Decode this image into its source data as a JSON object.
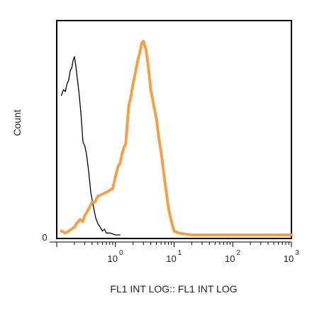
{
  "chart_data": {
    "type": "line",
    "title": "",
    "xlabel": "FL1 INT LOG:: FL1 INT LOG",
    "ylabel": "Count",
    "x_scale": "log",
    "xlim": [
      0.1,
      1000
    ],
    "ylim": [
      0,
      1
    ],
    "grid": false,
    "y_tick_labels": [
      {
        "value": 0,
        "label": "0"
      }
    ],
    "x_tick_labels": [
      {
        "value": 1,
        "base": "10",
        "exp": "0"
      },
      {
        "value": 10,
        "base": "10",
        "exp": "1"
      },
      {
        "value": 100,
        "base": "10",
        "exp": "2"
      },
      {
        "value": 1000,
        "base": "10",
        "exp": "3"
      }
    ],
    "series": [
      {
        "color": "#000000",
        "x": [
          0.12,
          0.13,
          0.14,
          0.15,
          0.16,
          0.17,
          0.18,
          0.19,
          0.2,
          0.21,
          0.22,
          0.24,
          0.26,
          0.28,
          0.3,
          0.32,
          0.35,
          0.38,
          0.42,
          0.46,
          0.5,
          0.55,
          0.6,
          0.65,
          0.7,
          0.8,
          0.9,
          1.0,
          1.2
        ],
        "y": [
          0.72,
          0.75,
          0.74,
          0.78,
          0.8,
          0.85,
          0.86,
          0.9,
          0.92,
          0.88,
          0.83,
          0.73,
          0.62,
          0.48,
          0.46,
          0.42,
          0.33,
          0.22,
          0.15,
          0.09,
          0.06,
          0.04,
          0.02,
          0.03,
          0.01,
          0.01,
          0.005,
          0.0,
          0.0
        ]
      },
      {
        "color": "#f5a046",
        "x": [
          0.12,
          0.14,
          0.16,
          0.18,
          0.2,
          0.22,
          0.25,
          0.28,
          0.3,
          0.33,
          0.36,
          0.4,
          0.45,
          0.5,
          0.6,
          0.7,
          0.8,
          0.9,
          1.0,
          1.1,
          1.2,
          1.3,
          1.4,
          1.5,
          1.6,
          1.7,
          1.8,
          2.0,
          2.2,
          2.4,
          2.6,
          2.8,
          3.0,
          3.3,
          3.6,
          4.0,
          4.5,
          5.0,
          5.5,
          6.0,
          7.0,
          8.0,
          9.0,
          10.0,
          12.0,
          15.0,
          20.0,
          50.0,
          200.0,
          1000.0
        ],
        "y": [
          0.02,
          0.01,
          0.02,
          0.03,
          0.04,
          0.06,
          0.08,
          0.07,
          0.1,
          0.12,
          0.14,
          0.17,
          0.17,
          0.2,
          0.21,
          0.22,
          0.23,
          0.24,
          0.3,
          0.35,
          0.37,
          0.42,
          0.45,
          0.47,
          0.58,
          0.67,
          0.7,
          0.78,
          0.84,
          0.9,
          0.94,
          0.99,
          1.0,
          0.96,
          0.88,
          0.75,
          0.67,
          0.6,
          0.5,
          0.43,
          0.27,
          0.14,
          0.07,
          0.02,
          0.01,
          0.005,
          0.0,
          0.0,
          0.0,
          0.0
        ]
      }
    ]
  }
}
